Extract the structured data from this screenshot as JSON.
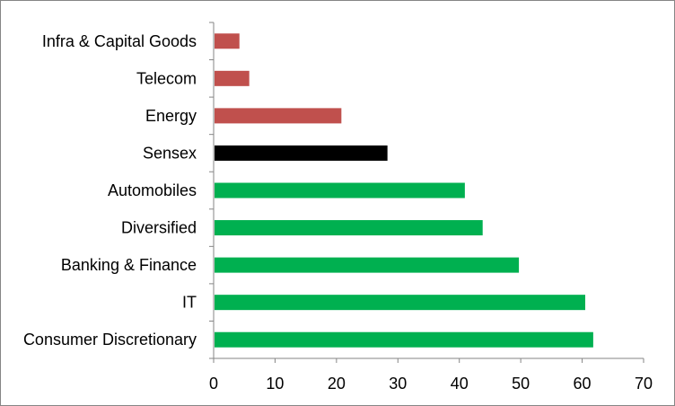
{
  "chart_data": {
    "type": "bar",
    "orientation": "horizontal",
    "title": "",
    "xlabel": "",
    "ylabel": "",
    "categories": [
      "Infra & Capital Goods",
      "Telecom",
      "Energy",
      "Sensex",
      "Automobiles",
      "Diversified",
      "Banking & Finance",
      "IT",
      "Consumer Discretionary"
    ],
    "values": [
      4.2,
      5.8,
      20.8,
      28.3,
      40.9,
      43.8,
      49.7,
      60.5,
      61.8
    ],
    "bar_colors": [
      "#C0504D",
      "#C0504D",
      "#C0504D",
      "#000000",
      "#00B050",
      "#00B050",
      "#00B050",
      "#00B050",
      "#00B050"
    ],
    "xlim": [
      0,
      70
    ],
    "xticks": [
      "0",
      "10",
      "20",
      "30",
      "40",
      "50",
      "60",
      "70"
    ],
    "grid": false,
    "legend": "none"
  }
}
